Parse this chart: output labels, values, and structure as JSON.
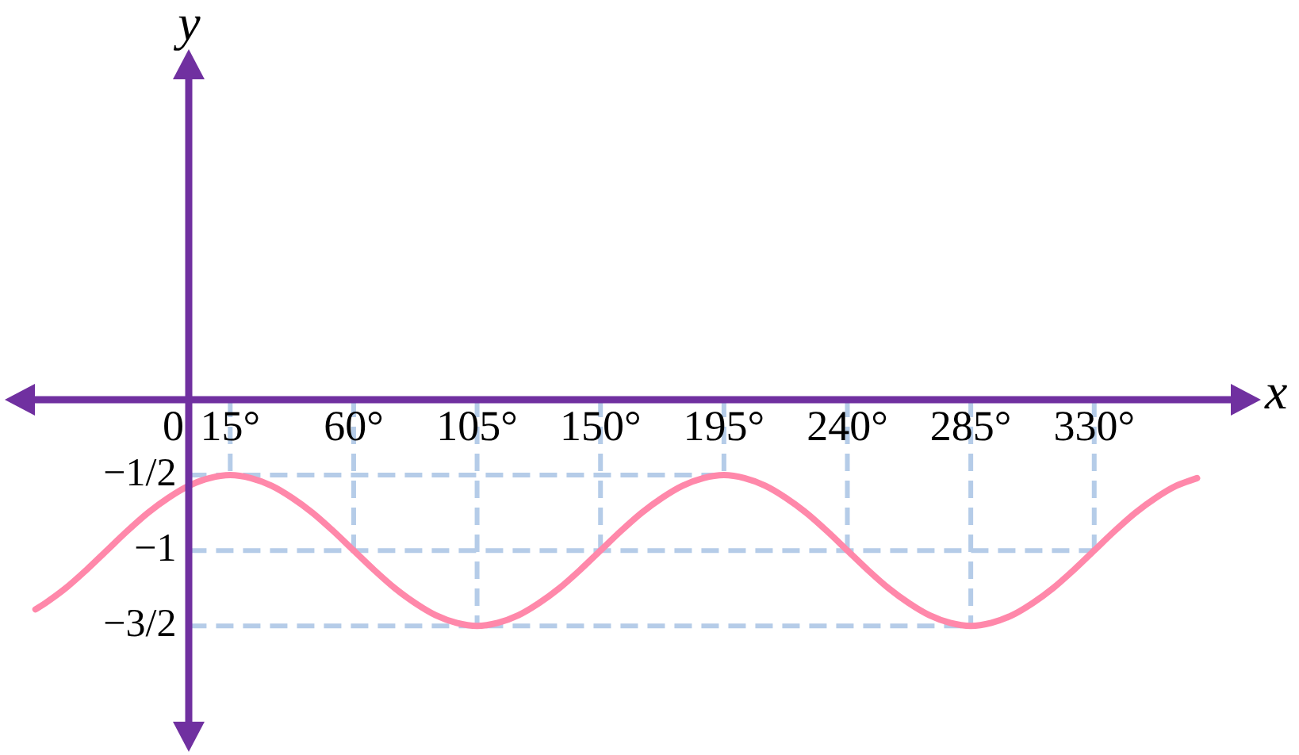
{
  "chart_data": {
    "type": "line",
    "xlabel": "x",
    "ylabel": "y",
    "series": [
      {
        "color": "#ff88aa",
        "x": [
          -56,
          -52.5,
          -45,
          -37.5,
          -30,
          -22.5,
          -15,
          -7.5,
          0,
          7.5,
          15,
          22.5,
          30,
          37.5,
          45,
          52.5,
          60,
          67.5,
          75,
          82.5,
          90,
          97.5,
          105,
          112.5,
          120,
          127.5,
          135,
          142.5,
          150,
          157.5,
          165,
          172.5,
          180,
          187.5,
          195,
          202.5,
          210,
          217.5,
          225,
          232.5,
          240,
          247.5,
          255,
          262.5,
          270,
          277.5,
          285,
          292.5,
          300,
          307.5,
          315,
          322.5,
          330,
          337.5,
          345,
          352.5,
          360,
          367.5
        ],
        "values": [
          -1.39,
          -1.35,
          -1.25,
          -1.13,
          -1,
          -0.87,
          -0.75,
          -0.65,
          -0.57,
          -0.52,
          -0.5,
          -0.52,
          -0.57,
          -0.65,
          -0.75,
          -0.87,
          -1,
          -1.13,
          -1.25,
          -1.35,
          -1.43,
          -1.48,
          -1.5,
          -1.48,
          -1.43,
          -1.35,
          -1.25,
          -1.13,
          -1,
          -0.87,
          -0.75,
          -0.65,
          -0.57,
          -0.52,
          -0.5,
          -0.52,
          -0.57,
          -0.65,
          -0.75,
          -0.87,
          -1,
          -1.13,
          -1.25,
          -1.35,
          -1.43,
          -1.48,
          -1.5,
          -1.48,
          -1.43,
          -1.35,
          -1.25,
          -1.13,
          -1,
          -0.87,
          -0.75,
          -0.65,
          -0.57,
          -0.52
        ]
      },
      {
        "color": "#b5cce8",
        "line_style": "dashed",
        "x": [
          15,
          15,
          null,
          60,
          60,
          null,
          105,
          105,
          null,
          150,
          150,
          null,
          195,
          195,
          null,
          240,
          240,
          null,
          285,
          285,
          null,
          330,
          330,
          null,
          0,
          195,
          null,
          0,
          330,
          null,
          0,
          285
        ],
        "values": [
          0,
          -0.5,
          null,
          0,
          -1,
          null,
          0,
          -1.5,
          null,
          0,
          -1,
          null,
          0,
          -0.5,
          null,
          0,
          -1,
          null,
          0,
          -1.5,
          null,
          0,
          -1,
          null,
          -0.5,
          -0.5,
          null,
          -1,
          -1,
          null,
          -1.5,
          -1.5
        ]
      }
    ],
    "xlim": [
      -62,
      385
    ],
    "ylim": [
      -2.23,
      2.23
    ],
    "xticks": [
      {
        "value": 0,
        "label": "0"
      },
      {
        "value": 15,
        "label": "15°"
      },
      {
        "value": 60,
        "label": "60°"
      },
      {
        "value": 105,
        "label": "105°"
      },
      {
        "value": 150,
        "label": "150°"
      },
      {
        "value": 195,
        "label": "195°"
      },
      {
        "value": 240,
        "label": "240°"
      },
      {
        "value": 285,
        "label": "285°"
      },
      {
        "value": 330,
        "label": "330°"
      }
    ],
    "yticks": [
      {
        "value": -0.5,
        "label": "−1/2"
      },
      {
        "value": -1,
        "label": "−1"
      },
      {
        "value": -1.5,
        "label": "−3/2"
      }
    ]
  }
}
